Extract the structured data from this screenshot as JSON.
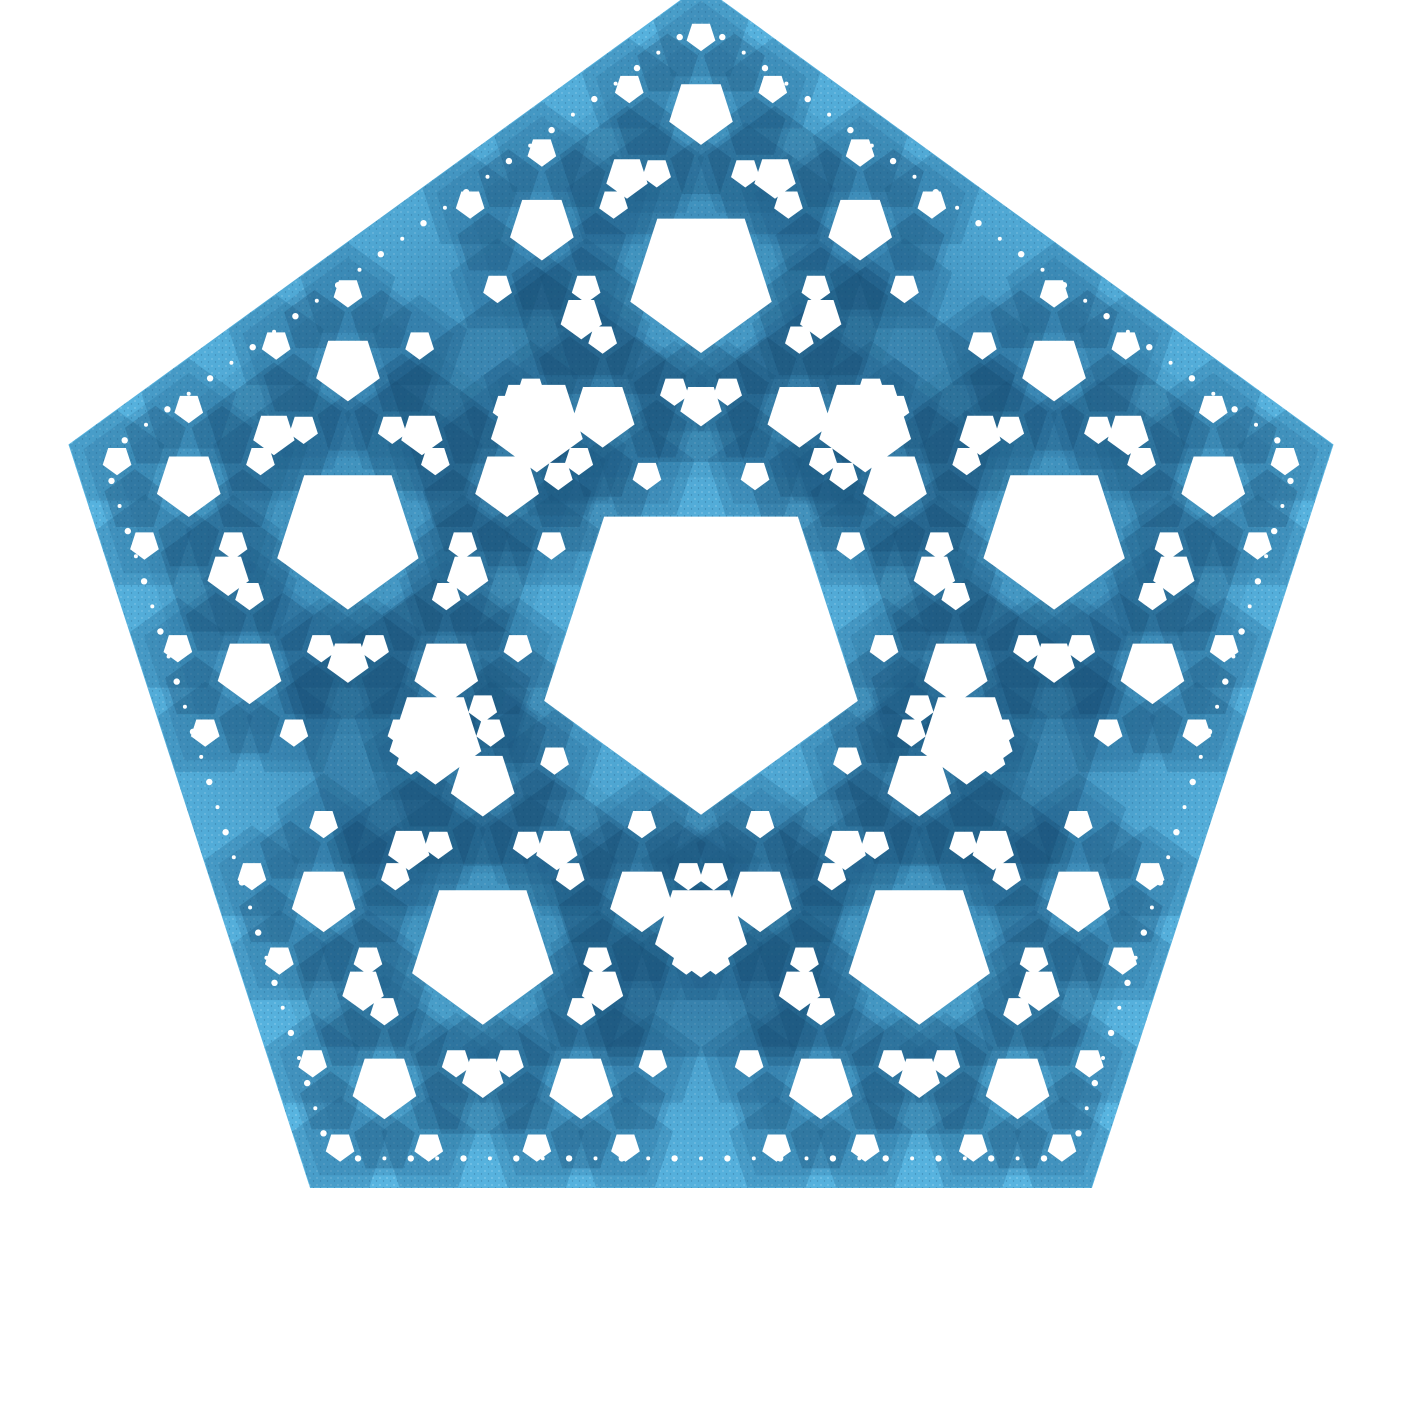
{
  "image": {
    "subject": "pentaflake-fractal",
    "shape": "regular-pentagon",
    "background_color": "#ffffff",
    "colors": {
      "fill_base": "#58b4e0",
      "fill_mid": "#3b8fc4",
      "fill_dark": "#1f5f8c",
      "fill_deep": "#0f3d60",
      "speckle_light": "#a8ddf5",
      "holes": "#ffffff"
    },
    "symmetry": "five-fold",
    "recursion_depth": 3
  }
}
